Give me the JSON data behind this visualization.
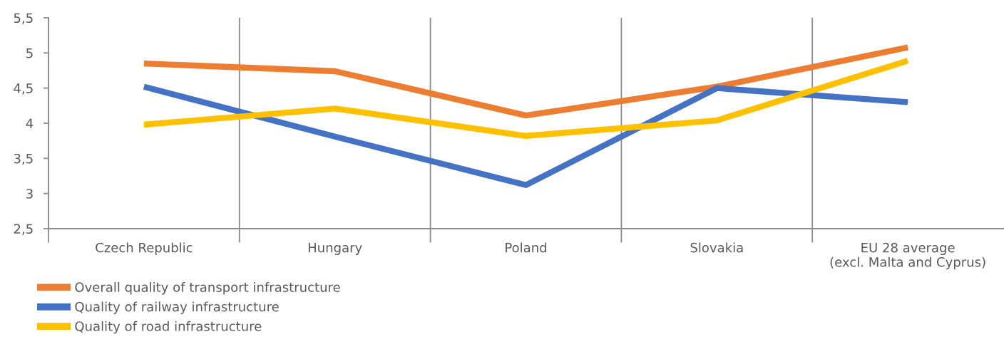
{
  "chart_data": {
    "type": "line",
    "categories": [
      "Czech Republic",
      "Hungary",
      "Poland",
      "Slovakia",
      "EU 28 average\n(excl. Malta and Cyprus)"
    ],
    "series": [
      {
        "name": "Overall quality of transport infrastructure",
        "color": "#ed7d31",
        "values": [
          4.85,
          4.74,
          4.11,
          4.52,
          5.08
        ]
      },
      {
        "name": "Quality of railway infrastructure",
        "color": "#4472c4",
        "values": [
          4.52,
          3.81,
          3.12,
          4.5,
          4.3
        ]
      },
      {
        "name": "Quality of road infrastructure",
        "color": "#ffc000",
        "values": [
          3.98,
          4.21,
          3.82,
          4.04,
          4.89
        ]
      }
    ],
    "ylim": [
      2.5,
      5.5
    ],
    "yticks": [
      {
        "value": 2.5,
        "label": "2,5"
      },
      3,
      {
        "value": 3.5,
        "label": "3,5"
      },
      4,
      {
        "value": 4.5,
        "label": "4,5"
      },
      5,
      {
        "value": 5.5,
        "label": "5,5"
      }
    ],
    "grid": "x",
    "legend": "bottom left",
    "line_style": "solid"
  }
}
